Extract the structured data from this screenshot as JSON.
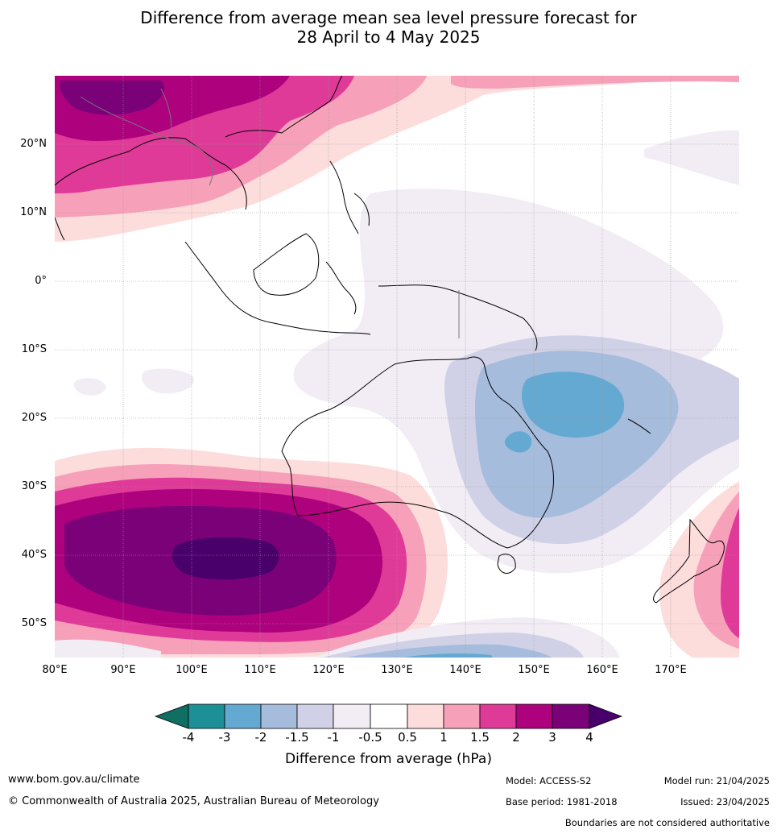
{
  "title": {
    "line1": "Difference from average mean sea level pressure forecast for",
    "line2": "28 April to 4 May 2025"
  },
  "map": {
    "lat_labels": [
      "20°N",
      "10°N",
      "0°",
      "10°S",
      "20°S",
      "30°S",
      "40°S",
      "50°S"
    ],
    "lon_labels": [
      "80°E",
      "90°E",
      "100°E",
      "110°E",
      "120°E",
      "130°E",
      "140°E",
      "150°E",
      "160°E",
      "170°E"
    ]
  },
  "colorbar": {
    "ticks": [
      "-4",
      "-3",
      "-2",
      "-1.5",
      "-1",
      "-0.5",
      "0.5",
      "1",
      "1.5",
      "2",
      "3",
      "4"
    ],
    "colors": [
      "#0f6f63",
      "#1d8f96",
      "#64a9d1",
      "#a6bcdc",
      "#d0d1e6",
      "#f2ecf5",
      "#ffffff",
      "#fddcdc",
      "#f7a0b9",
      "#df3a98",
      "#ae017e",
      "#7a0177",
      "#49006a"
    ],
    "title": "Difference from average (hPa)"
  },
  "footer": {
    "url": "www.bom.gov.au/climate",
    "copyright": "© Commonwealth of Australia 2025, Australian Bureau of Meteorology",
    "model": "Model: ACCESS-S2",
    "base_period": "Base period: 1981-2018",
    "model_run": "Model run: 21/04/2025",
    "issued": "Issued: 23/04/2025",
    "disclaimer": "Boundaries are not considered authoritative"
  }
}
